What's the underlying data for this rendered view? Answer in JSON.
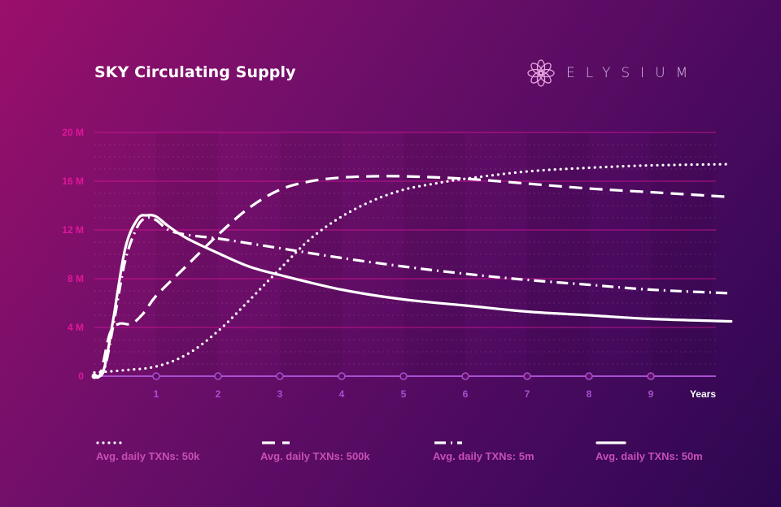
{
  "header": {
    "title": "SKY Circulating Supply",
    "brand": "ELYSIUM"
  },
  "colors": {
    "accent_pink": "#e0169b",
    "axis_purple": "#a84fd0",
    "line": "#ffffff",
    "legend_text": "#c74fb6"
  },
  "icons": {
    "brand_logo": "swirl-logo-icon"
  },
  "chart_data": {
    "type": "line",
    "title": "SKY Circulating Supply",
    "xlabel": "Years",
    "ylabel": "",
    "xlim": [
      0,
      10.3
    ],
    "ylim": [
      0,
      20
    ],
    "x_ticks": [
      1,
      2,
      3,
      4,
      5,
      6,
      7,
      8,
      9
    ],
    "y_ticks": [
      0,
      4,
      8,
      12,
      16,
      20
    ],
    "y_tick_labels": [
      "0",
      "4 M",
      "8 M",
      "12 M",
      "16 M",
      "20 M"
    ],
    "grid": true,
    "legend_position": "bottom",
    "series": [
      {
        "name": "Avg. daily TXNs: 50k",
        "style": "dotted",
        "x": [
          0,
          0.5,
          1,
          1.5,
          2,
          2.5,
          3,
          3.5,
          4,
          4.5,
          5,
          5.5,
          6,
          7,
          8,
          9,
          10.3
        ],
        "y": [
          0.3,
          0.5,
          0.8,
          1.8,
          3.7,
          6.2,
          8.8,
          11.3,
          13.1,
          14.4,
          15.3,
          15.8,
          16.2,
          16.8,
          17.1,
          17.3,
          17.4
        ]
      },
      {
        "name": "Avg. daily TXNs: 500k",
        "style": "dashed",
        "x": [
          0,
          0.1,
          0.25,
          0.4,
          0.6,
          0.8,
          1,
          1.5,
          2,
          2.5,
          3,
          3.5,
          4,
          4.5,
          5,
          6,
          7,
          8,
          9,
          10.3
        ],
        "y": [
          0,
          0.2,
          3.5,
          4.3,
          4.3,
          5.2,
          6.6,
          9.1,
          11.6,
          13.8,
          15.3,
          16.0,
          16.3,
          16.4,
          16.4,
          16.2,
          15.8,
          15.4,
          15.1,
          14.7
        ]
      },
      {
        "name": "Avg. daily TXNs: 5m",
        "style": "dash-dot",
        "x": [
          0,
          0.15,
          0.3,
          0.5,
          0.7,
          0.85,
          1,
          1.2,
          1.5,
          2,
          2.5,
          3,
          4,
          5,
          6,
          7,
          8,
          9,
          10.3
        ],
        "y": [
          0,
          0.4,
          4.0,
          9.5,
          12.3,
          13.0,
          12.8,
          12.0,
          11.6,
          11.3,
          10.9,
          10.5,
          9.7,
          9.0,
          8.4,
          7.9,
          7.5,
          7.1,
          6.8
        ]
      },
      {
        "name": "Avg. daily TXNs: 50m",
        "style": "solid",
        "x": [
          0,
          0.15,
          0.3,
          0.5,
          0.7,
          0.85,
          1,
          1.2,
          1.5,
          2,
          2.5,
          3,
          4,
          5,
          6,
          7,
          8,
          9,
          10.3
        ],
        "y": [
          0,
          0.5,
          4.5,
          10.5,
          12.9,
          13.2,
          13.1,
          12.3,
          11.3,
          10.1,
          9.0,
          8.3,
          7.1,
          6.3,
          5.8,
          5.3,
          5.0,
          4.7,
          4.5
        ]
      }
    ]
  }
}
